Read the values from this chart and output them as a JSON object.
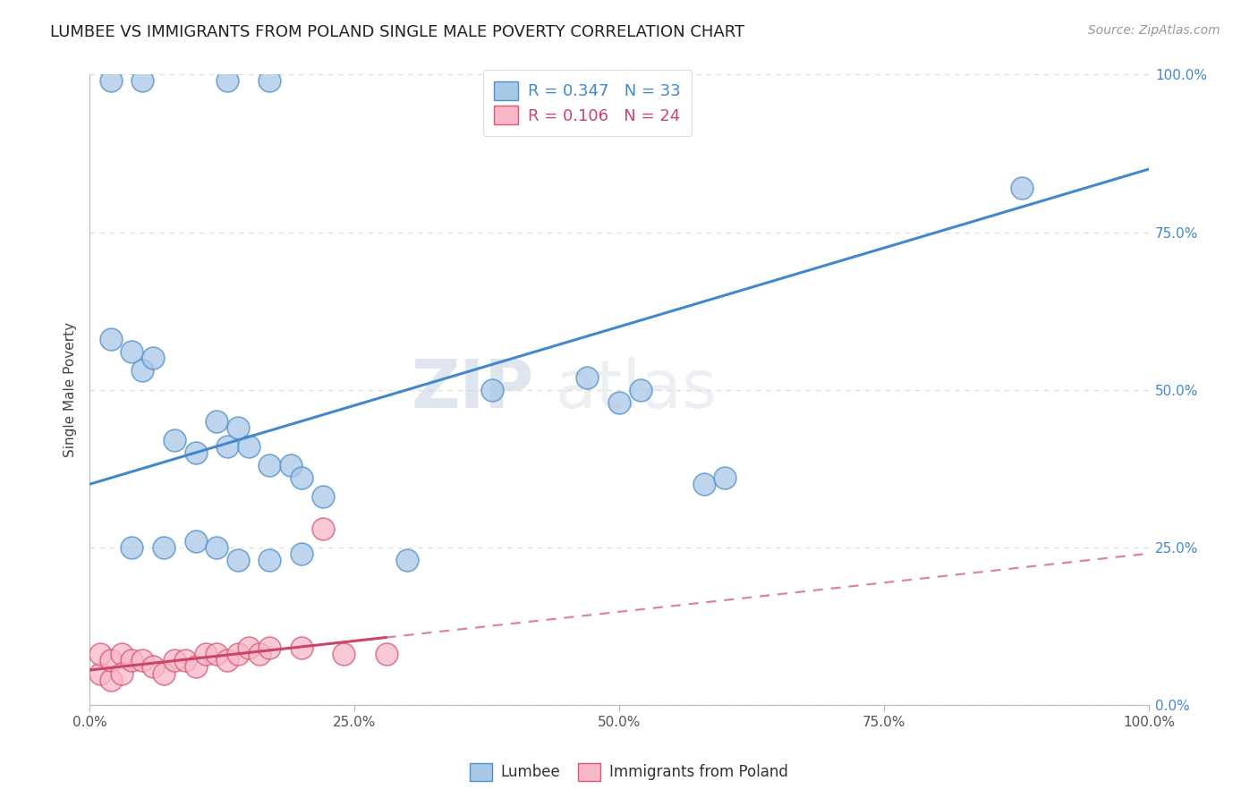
{
  "title": "LUMBEE VS IMMIGRANTS FROM POLAND SINGLE MALE POVERTY CORRELATION CHART",
  "source": "Source: ZipAtlas.com",
  "ylabel": "Single Male Poverty",
  "ytick_labels": [
    "0.0%",
    "25.0%",
    "50.0%",
    "75.0%",
    "100.0%"
  ],
  "ytick_values": [
    0.0,
    0.25,
    0.5,
    0.75,
    1.0
  ],
  "xtick_labels": [
    "0.0%",
    "25.0%",
    "50.0%",
    "75.0%",
    "100.0%"
  ],
  "xtick_values": [
    0.0,
    0.25,
    0.5,
    0.75,
    1.0
  ],
  "legend_lumbee": "Lumbee",
  "legend_poland": "Immigrants from Poland",
  "legend_r_lumbee": "R = 0.347",
  "legend_n_lumbee": "N = 33",
  "legend_r_poland": "R = 0.106",
  "legend_n_poland": "N = 24",
  "color_lumbee_fill": "#a8c8e8",
  "color_lumbee_edge": "#5090c8",
  "color_poland_fill": "#f8b8c8",
  "color_poland_edge": "#d85878",
  "color_lumbee_line": "#4488cc",
  "color_poland_line": "#cc4466",
  "lumbee_x": [
    0.02,
    0.05,
    0.13,
    0.17,
    0.02,
    0.04,
    0.05,
    0.06,
    0.08,
    0.1,
    0.12,
    0.13,
    0.14,
    0.15,
    0.17,
    0.19,
    0.2,
    0.22,
    0.04,
    0.07,
    0.1,
    0.12,
    0.14,
    0.17,
    0.2,
    0.3,
    0.38,
    0.47,
    0.5,
    0.52,
    0.58,
    0.6,
    0.88
  ],
  "lumbee_y": [
    0.99,
    0.99,
    0.99,
    0.99,
    0.58,
    0.56,
    0.53,
    0.55,
    0.42,
    0.4,
    0.45,
    0.41,
    0.44,
    0.41,
    0.38,
    0.38,
    0.36,
    0.33,
    0.25,
    0.25,
    0.26,
    0.25,
    0.23,
    0.23,
    0.24,
    0.23,
    0.5,
    0.52,
    0.48,
    0.5,
    0.35,
    0.36,
    0.82
  ],
  "poland_x": [
    0.01,
    0.01,
    0.02,
    0.02,
    0.03,
    0.03,
    0.04,
    0.05,
    0.06,
    0.07,
    0.08,
    0.09,
    0.1,
    0.11,
    0.12,
    0.13,
    0.14,
    0.15,
    0.16,
    0.17,
    0.2,
    0.22,
    0.24,
    0.28
  ],
  "poland_y": [
    0.05,
    0.08,
    0.04,
    0.07,
    0.08,
    0.05,
    0.07,
    0.07,
    0.06,
    0.05,
    0.07,
    0.07,
    0.06,
    0.08,
    0.08,
    0.07,
    0.08,
    0.09,
    0.08,
    0.09,
    0.09,
    0.28,
    0.08,
    0.08
  ],
  "lumbee_line_x0": 0.0,
  "lumbee_line_y0": 0.35,
  "lumbee_line_x1": 1.0,
  "lumbee_line_y1": 0.85,
  "poland_line_x0": 0.0,
  "poland_line_y0": 0.055,
  "poland_line_solid_x1": 0.28,
  "poland_line_dash_x1": 1.0,
  "poland_line_y_at_dash_end": 0.24,
  "background_color": "#ffffff",
  "grid_color": "#cccccc",
  "watermark_zip": "ZIP",
  "watermark_atlas": "atlas",
  "xlim": [
    0.0,
    1.0
  ],
  "ylim": [
    0.0,
    1.0
  ]
}
